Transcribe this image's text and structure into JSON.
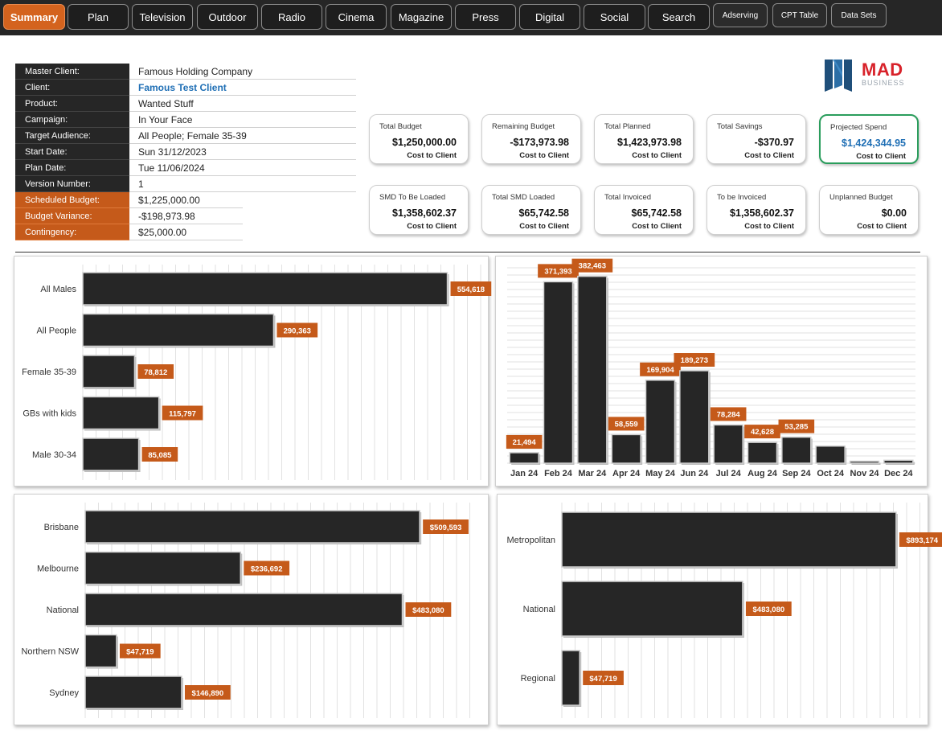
{
  "nav": {
    "tabs": [
      {
        "label": "Summary",
        "name": "tab-summary",
        "active": true
      },
      {
        "label": "Plan",
        "name": "tab-plan"
      },
      {
        "label": "Television",
        "name": "tab-television"
      },
      {
        "label": "Outdoor",
        "name": "tab-outdoor"
      },
      {
        "label": "Radio",
        "name": "tab-radio"
      },
      {
        "label": "Cinema",
        "name": "tab-cinema"
      },
      {
        "label": "Magazine",
        "name": "tab-magazine"
      },
      {
        "label": "Press",
        "name": "tab-press"
      },
      {
        "label": "Digital",
        "name": "tab-digital"
      },
      {
        "label": "Social",
        "name": "tab-social"
      },
      {
        "label": "Search",
        "name": "tab-search"
      },
      {
        "label": "Adserving",
        "name": "tab-adserving",
        "small": true
      },
      {
        "label": "CPT Table",
        "name": "tab-cpt-table",
        "small": true
      },
      {
        "label": "Data Sets",
        "name": "tab-data-sets",
        "small": true
      }
    ]
  },
  "info": {
    "rows": [
      {
        "label": "Master Client:",
        "value": "Famous Holding Company"
      },
      {
        "label": "Client:",
        "value": "Famous Test Client",
        "style": "blue"
      },
      {
        "label": "Product:",
        "value": "Wanted Stuff"
      },
      {
        "label": "Campaign:",
        "value": "In Your Face"
      },
      {
        "label": "Target Audience:",
        "value": "All People; Female 35-39"
      },
      {
        "label": "Start Date:",
        "value": "Sun 31/12/2023"
      },
      {
        "label": "Plan Date:",
        "value": "Tue 11/06/2024"
      },
      {
        "label": "Version Number:",
        "value": "1"
      },
      {
        "label": "Scheduled Budget:",
        "value": "$1,225,000.00",
        "style": "orange"
      },
      {
        "label": "Budget Variance:",
        "value": "-$198,973.98",
        "style": "orange"
      },
      {
        "label": "Contingency:",
        "value": "$25,000.00",
        "style": "orange"
      }
    ]
  },
  "logo": {
    "main": "MAD",
    "sub": "BUSINESS"
  },
  "cards": [
    {
      "title": "Total Budget",
      "value": "$1,250,000.00",
      "sub": "Cost to Client"
    },
    {
      "title": "Remaining Budget",
      "value": "-$173,973.98",
      "sub": "Cost to Client"
    },
    {
      "title": "Total Planned",
      "value": "$1,423,973.98",
      "sub": "Cost to Client"
    },
    {
      "title": "Total Savings",
      "value": "-$370.97",
      "sub": "Cost to Client"
    },
    {
      "title": "Projected Spend",
      "value": "$1,424,344.95",
      "sub": "Cost to Client",
      "highlight": true
    },
    {
      "title": "SMD To Be Loaded",
      "value": "$1,358,602.37",
      "sub": "Cost to Client"
    },
    {
      "title": "Total SMD Loaded",
      "value": "$65,742.58",
      "sub": "Cost to Client"
    },
    {
      "title": "Total Invoiced",
      "value": "$65,742.58",
      "sub": "Cost to Client"
    },
    {
      "title": "To be Invoiced",
      "value": "$1,358,602.37",
      "sub": "Cost to Client"
    },
    {
      "title": "Unplanned Budget",
      "value": "$0.00",
      "sub": "Cost to Client"
    }
  ],
  "colors": {
    "bar": "#262626",
    "label_bg": "#c55a1a",
    "accent": "#d4631e"
  },
  "chart_data": [
    {
      "type": "bar",
      "orientation": "horizontal",
      "categories": [
        "All Males",
        "All People",
        "Female 35-39",
        "GBs with kids",
        "Male 30-34"
      ],
      "values": [
        554618,
        290363,
        78812,
        115797,
        85085
      ],
      "labels": [
        "554,618",
        "290,363",
        "78,812",
        "115,797",
        "85,085"
      ],
      "xlim": [
        0,
        620000
      ]
    },
    {
      "type": "bar",
      "orientation": "vertical",
      "categories": [
        "Jan 24",
        "Feb 24",
        "Mar 24",
        "Apr 24",
        "May 24",
        "Jun 24",
        "Jul 24",
        "Aug 24",
        "Sep 24",
        "Oct 24",
        "Nov 24",
        "Dec 24"
      ],
      "values": [
        21494,
        371393,
        382463,
        58559,
        169904,
        189273,
        78284,
        42628,
        53285,
        35000,
        4000,
        6000
      ],
      "labels": [
        "21,494",
        "371,393",
        "382,463",
        "58,559",
        "169,904",
        "189,273",
        "78,284",
        "42,628",
        "53,285",
        "",
        "",
        ""
      ],
      "ylim": [
        0,
        400000
      ]
    },
    {
      "type": "bar",
      "orientation": "horizontal",
      "categories": [
        "Brisbane",
        "Melbourne",
        "National",
        "Northern NSW",
        "Sydney"
      ],
      "values": [
        509593,
        236692,
        483080,
        47719,
        146890
      ],
      "labels": [
        "$509,593",
        "$236,692",
        "$483,080",
        "$47,719",
        "$146,890"
      ],
      "xlim": [
        0,
        600000
      ]
    },
    {
      "type": "bar",
      "orientation": "horizontal",
      "categories": [
        "Metropolitan",
        "National",
        "Regional"
      ],
      "values": [
        893174,
        483080,
        47719
      ],
      "labels": [
        "$893,174",
        "$483,080",
        "$47,719"
      ],
      "xlim": [
        0,
        960000
      ]
    }
  ]
}
